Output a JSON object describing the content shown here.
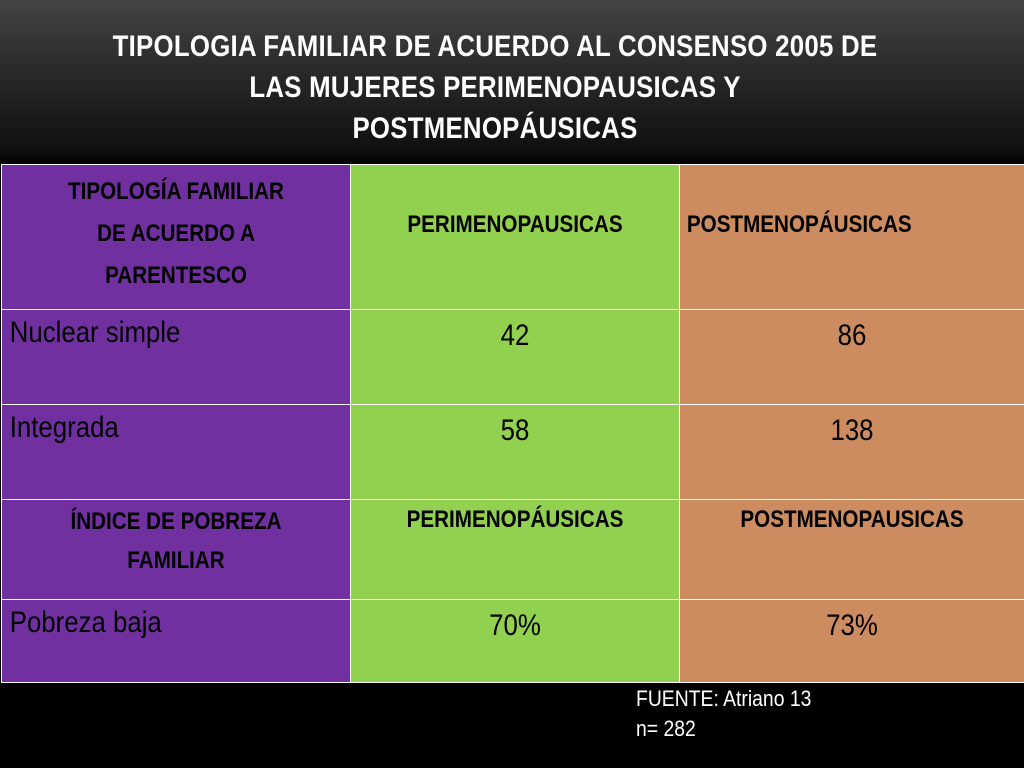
{
  "title": {
    "line1": "TIPOLOGIA FAMILIAR DE ACUERDO AL CONSENSO 2005 DE",
    "line2": "LAS MUJERES  PERIMENOPAUSICAS Y",
    "line3": "POSTMENOPÁUSICAS"
  },
  "colors": {
    "col1": "#7030a0",
    "col2": "#92d050",
    "col3": "#cc8c5f",
    "background": "#000000"
  },
  "table": {
    "header1": {
      "col1_line1": "TIPOLOGÍA FAMILIAR",
      "col1_line2": "DE ACUERDO A",
      "col1_line3": "PARENTESCO",
      "col2": "PERIMENOPAUSICAS",
      "col3": "POSTMENOPÁUSICAS"
    },
    "rows1": [
      {
        "label": "Nuclear simple",
        "peri": "42",
        "post": "86"
      },
      {
        "label": "Integrada",
        "peri": "58",
        "post": "138"
      }
    ],
    "header2": {
      "col1_line1": "ÍNDICE DE POBREZA",
      "col1_line2": "FAMILIAR",
      "col2": "PERIMENOPÁUSICAS",
      "col3": "POSTMENOPAUSICAS"
    },
    "rows2": [
      {
        "label": "Pobreza baja",
        "peri": "70%",
        "post": "73%"
      }
    ]
  },
  "footer": {
    "source": "FUENTE: Atriano 13",
    "n": "n= 282"
  }
}
